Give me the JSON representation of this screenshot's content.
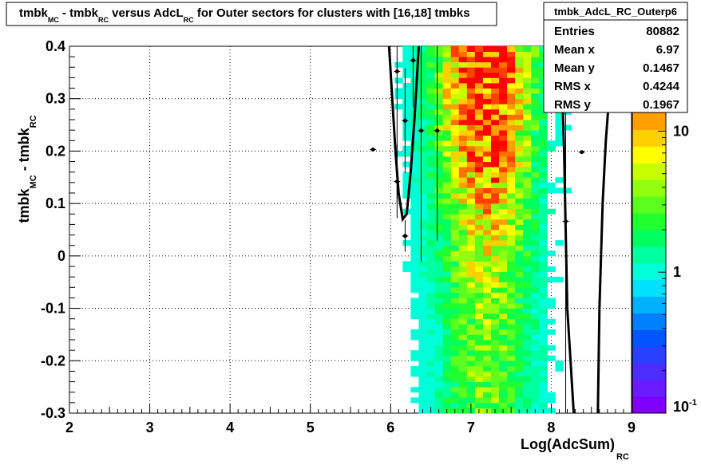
{
  "title": {
    "parts": [
      {
        "text": "tmbk",
        "sub": "MC"
      },
      {
        "text": " - tmbk",
        "sub": "RC"
      },
      {
        "text": " versus AdcL",
        "sub": "RC"
      },
      {
        "text": " for Outer sectors for clusters with [16,18] tmbks",
        "sub": ""
      }
    ]
  },
  "stats_box": {
    "name": "tmbk_AdcL_RC_Outerp6",
    "rows": [
      {
        "label": "Entries",
        "value": "80882"
      },
      {
        "label": "Mean x",
        "value": "6.97"
      },
      {
        "label": "Mean y",
        "value": "0.1467"
      },
      {
        "label": "RMS x",
        "value": "0.4244"
      },
      {
        "label": "RMS y",
        "value": "0.1967"
      }
    ]
  },
  "chart_data": {
    "type": "heatmap",
    "title": "tmbk_MC - tmbk_RC versus AdcL_RC for Outer sectors for clusters with [16,18] tmbks",
    "xlabel": {
      "main": "Log(AdcSum)",
      "sub": "RC"
    },
    "ylabel": {
      "main": "tmbk",
      "sub1": "MC",
      "mid": " - tmbk",
      "sub2": "RC"
    },
    "xlim": [
      2,
      9
    ],
    "ylim": [
      -0.3,
      0.4
    ],
    "xticks": [
      "2",
      "3",
      "4",
      "5",
      "6",
      "7",
      "8",
      "9"
    ],
    "yticks": [
      "-0.3",
      "-0.2",
      "-0.1",
      "0",
      "0.1",
      "0.2",
      "0.3",
      "0.4"
    ],
    "log_z": true,
    "colorbar_labels": [
      {
        "text": "10",
        "exp": "-1",
        "z": 0.1
      },
      {
        "text": "1",
        "exp": "",
        "z": 1
      },
      {
        "text": "10",
        "exp": "",
        "z": 10
      }
    ],
    "colorbar_colors": [
      "#8000ff",
      "#6a1cff",
      "#4c2cff",
      "#2a40ff",
      "#0055ff",
      "#0080ff",
      "#00b0ff",
      "#00e0ff",
      "#00ffd8",
      "#00ffa0",
      "#00ff60",
      "#20ff30",
      "#5aff20",
      "#90ff10",
      "#c8ff00",
      "#ffff00",
      "#ffd000",
      "#ffa000",
      "#ff7000",
      "#ff4000",
      "#ff1000",
      "#ff0000"
    ],
    "density_profile": {
      "x_center": 7.18,
      "x_sigma": 0.42,
      "x_start": 5.75,
      "x_end": 8.4,
      "y_peak": 0.39,
      "y_sigma": 0.24
    },
    "profile_points": [
      {
        "x": 5.78,
        "y": 0.203,
        "err": 0.0
      },
      {
        "x": 6.08,
        "y": 0.352,
        "err": 0.25
      },
      {
        "x": 6.08,
        "y": 0.142,
        "err": 0.07
      },
      {
        "x": 6.18,
        "y": 0.258,
        "err": 0.1
      },
      {
        "x": 6.18,
        "y": 0.038,
        "err": 0.03
      },
      {
        "x": 6.28,
        "y": 0.373,
        "err": 0.09
      },
      {
        "x": 6.38,
        "y": 0.239,
        "err": 0.25
      },
      {
        "x": 6.58,
        "y": 0.239,
        "err": 0.21
      },
      {
        "x": 8.18,
        "y": 0.066,
        "err": 0.4
      },
      {
        "x": 8.38,
        "y": 0.198,
        "err": 0.0
      }
    ],
    "fit_curves": [
      {
        "points": [
          [
            5.98,
            0.4
          ],
          [
            6.02,
            0.3
          ],
          [
            6.06,
            0.2
          ],
          [
            6.1,
            0.12
          ],
          [
            6.15,
            0.07
          ],
          [
            6.2,
            0.08
          ],
          [
            6.25,
            0.16
          ],
          [
            6.3,
            0.27
          ],
          [
            6.35,
            0.4
          ]
        ]
      },
      {
        "points": [
          [
            8.12,
            0.4
          ],
          [
            8.14,
            0.3
          ],
          [
            8.16,
            0.2
          ],
          [
            8.18,
            0.05
          ],
          [
            8.2,
            -0.1
          ],
          [
            8.24,
            -0.2
          ],
          [
            8.28,
            -0.3
          ]
        ]
      },
      {
        "points": [
          [
            8.58,
            -0.3
          ],
          [
            8.6,
            -0.1
          ],
          [
            8.64,
            0.1
          ],
          [
            8.68,
            0.22
          ],
          [
            8.72,
            0.3
          ],
          [
            8.76,
            0.4
          ]
        ]
      }
    ]
  }
}
